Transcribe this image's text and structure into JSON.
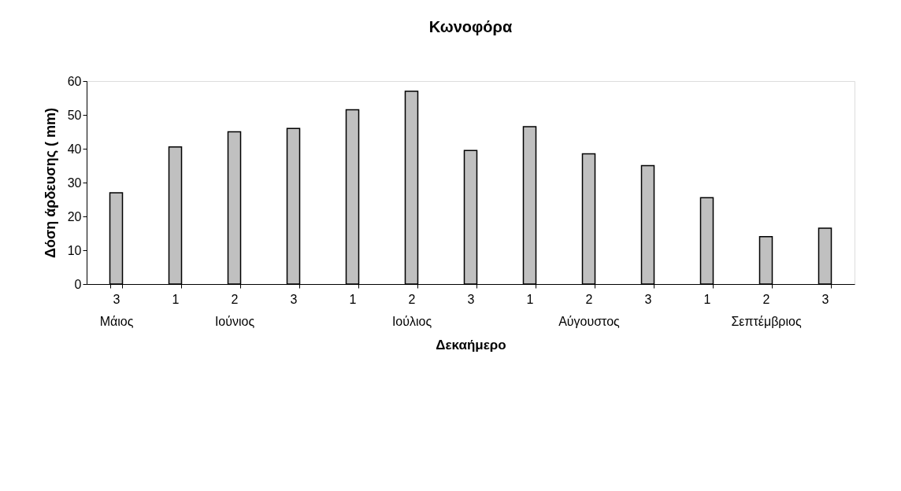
{
  "chart_data": {
    "type": "bar",
    "title": "Κωνοφόρα",
    "xlabel": "Δεκαήμερο",
    "ylabel": "Δόση άρδευσης ( mm)",
    "categories": [
      "3\nΜάιος",
      "1",
      "2\nΙούνιος",
      "3",
      "1",
      "2\nΙούλιος",
      "3",
      "1",
      "2\nΑύγουστος",
      "3",
      "1",
      "2\nΣεπτέμβριος",
      "3"
    ],
    "values": [
      27,
      40.5,
      45,
      46,
      51.5,
      57,
      39.5,
      46.5,
      38.5,
      35,
      25.5,
      14,
      16.5
    ],
    "color": "#c0c0c0",
    "ylim": [
      0,
      60
    ],
    "yticks": [
      0,
      10,
      20,
      30,
      40,
      50,
      60
    ],
    "grid": false
  }
}
